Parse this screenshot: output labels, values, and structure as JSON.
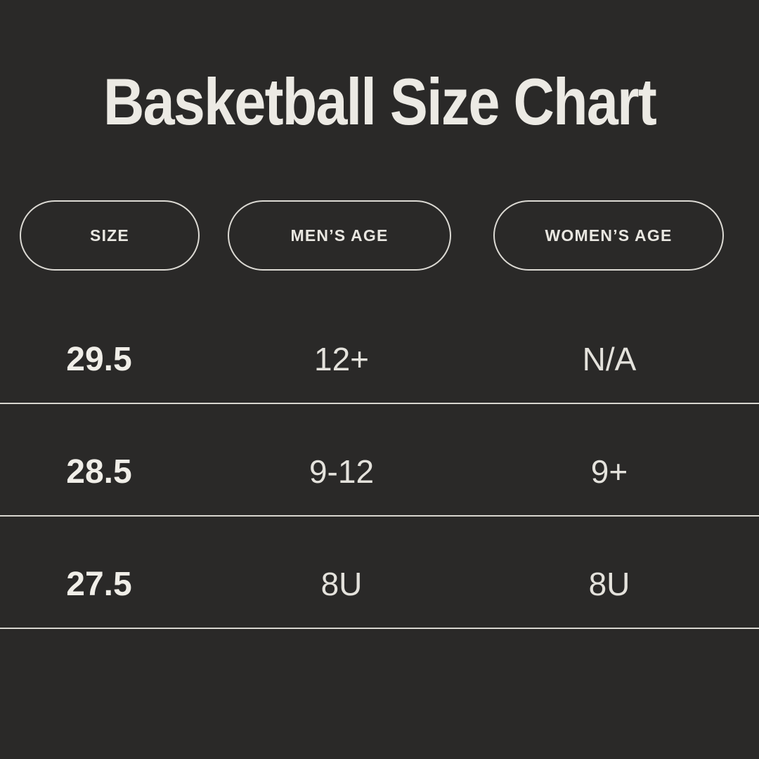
{
  "title": "Basketball Size Chart",
  "columns": [
    {
      "label": "SIZE"
    },
    {
      "label": "MEN’S AGE"
    },
    {
      "label": "WOMEN’S AGE"
    }
  ],
  "rows": [
    {
      "cells": [
        "29.5",
        "12+",
        "N/A"
      ]
    },
    {
      "cells": [
        "28.5",
        "9-12",
        "9+"
      ]
    },
    {
      "cells": [
        "27.5",
        "8U",
        "8U"
      ]
    }
  ],
  "colors": {
    "background": "#2a2928",
    "text": "#eceae4",
    "secondary_text": "#e4e2dc",
    "pill_border": "#dcdad4",
    "divider": "#d8d6d0"
  },
  "chart_data": {
    "type": "table",
    "title": "Basketball Size Chart",
    "columns": [
      "SIZE",
      "MEN’S AGE",
      "WOMEN’S AGE"
    ],
    "rows": [
      [
        "29.5",
        "12+",
        "N/A"
      ],
      [
        "28.5",
        "9-12",
        "9+"
      ],
      [
        "27.5",
        "8U",
        "8U"
      ]
    ]
  }
}
